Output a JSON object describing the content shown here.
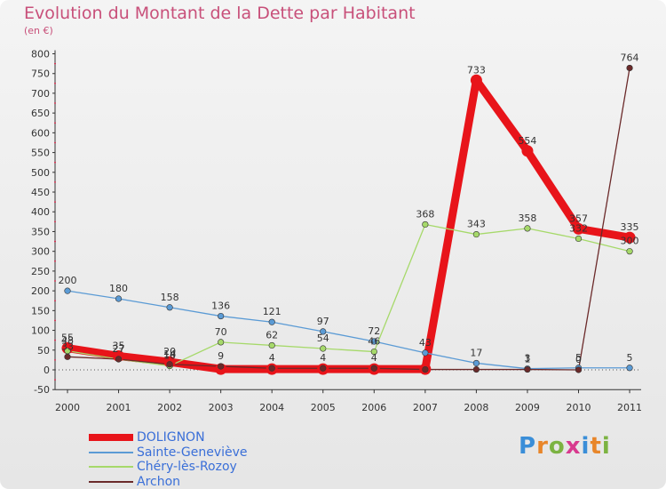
{
  "title": "Evolution du Montant de la Dette par Habitant",
  "unit": "(en €)",
  "logo": {
    "text": "Proxiti",
    "letter_colors": [
      "#3a8ed8",
      "#e8862a",
      "#7cb342",
      "#d83a8e",
      "#3a8ed8",
      "#e8862a",
      "#7cb342"
    ]
  },
  "chart_data": {
    "type": "line",
    "x": [
      "2000",
      "2001",
      "2002",
      "2003",
      "2004",
      "2005",
      "2006",
      "2007",
      "2008",
      "2009",
      "2010",
      "2011"
    ],
    "ylim": [
      -50,
      800
    ],
    "yticks": [
      "800",
      "750",
      "700",
      "650",
      "600",
      "550",
      "500",
      "450",
      "400",
      "350",
      "300",
      "250",
      "200",
      "150",
      "100",
      "50",
      "0",
      "-50"
    ],
    "grid": false,
    "legend_position": "bottom-left",
    "series": [
      {
        "name": "DOLIGNON",
        "color": "#e8141a",
        "values": [
          55,
          35,
          20,
          2,
          2,
          2,
          2,
          2,
          733,
          554,
          357,
          335
        ],
        "labels": [
          "55",
          "35",
          "20",
          "",
          "",
          "",
          "",
          "",
          "733",
          "554",
          "357",
          "335"
        ]
      },
      {
        "name": "Sainte-Geneviève",
        "color": "#5b9bd5",
        "values": [
          200,
          180,
          158,
          136,
          121,
          97,
          72,
          43,
          17,
          3,
          5,
          5
        ],
        "labels": [
          "200",
          "180",
          "158",
          "136",
          "121",
          "97",
          "72",
          "43",
          "17",
          "3",
          "5",
          "5"
        ]
      },
      {
        "name": "Chéry-lès-Rozoy",
        "color": "#a6d96a",
        "values": [
          48,
          27,
          10,
          70,
          62,
          54,
          46,
          368,
          343,
          358,
          332,
          300
        ],
        "labels": [
          "48",
          "27",
          "10",
          "70",
          "62",
          "54",
          "46",
          "368",
          "343",
          "358",
          "332",
          "300"
        ]
      },
      {
        "name": "Archon",
        "color": "#6b2a2a",
        "values": [
          33,
          27,
          14,
          9,
          4,
          4,
          4,
          1,
          1,
          1,
          0,
          764
        ],
        "labels": [
          "33",
          "27",
          "14",
          "9",
          "4",
          "4",
          "4",
          "",
          "",
          "1",
          "0",
          "764"
        ]
      }
    ]
  }
}
